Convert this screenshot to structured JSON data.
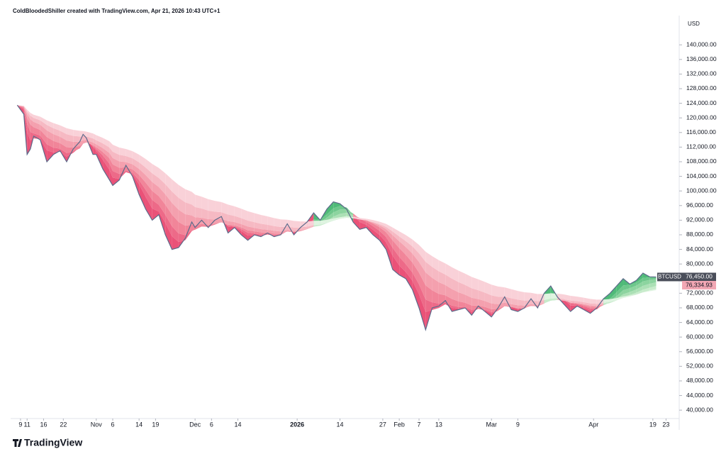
{
  "chart_data": {
    "type": "line",
    "title": "ColdBloodedShiller created with TradingView.com, Apr 21, 2026 10:43 UTC+1",
    "brand": "TradingView",
    "currency": "USD",
    "x": [
      7,
      9,
      10,
      11,
      12,
      14,
      16,
      18,
      20,
      22,
      24,
      26,
      27,
      28,
      30,
      31,
      33,
      35,
      36,
      38,
      40,
      42,
      44,
      46,
      48,
      50,
      52,
      54,
      56,
      58,
      60,
      61,
      63,
      65,
      67,
      69,
      71,
      73,
      75,
      77,
      79,
      81,
      83,
      85,
      87,
      89,
      91,
      93,
      95,
      97,
      99,
      101,
      103,
      105,
      107,
      109,
      111,
      113,
      115,
      117,
      119,
      121,
      123,
      125,
      127,
      129,
      131,
      133,
      135,
      137,
      139,
      141,
      143,
      145,
      147,
      149,
      151,
      153,
      155,
      157,
      159,
      161,
      163,
      165,
      167,
      169,
      171,
      173,
      175,
      177,
      179,
      181,
      183,
      185,
      187,
      189,
      191,
      193,
      195,
      197,
      199,
      201
    ],
    "series": [
      {
        "name": "BTCUSD",
        "color": "#5d6a8a",
        "values": [
          123500,
          121000,
          110000,
          111500,
          115000,
          114000,
          108000,
          110000,
          111000,
          108000,
          111500,
          113500,
          115500,
          114500,
          110000,
          110000,
          106000,
          103000,
          101500,
          103000,
          107000,
          104000,
          99000,
          95000,
          92000,
          93500,
          88000,
          84000,
          84500,
          87000,
          91500,
          90000,
          92000,
          90000,
          92000,
          93000,
          88500,
          90000,
          88000,
          86500,
          88000,
          87500,
          88500,
          87500,
          88000,
          91000,
          88000,
          90000,
          91500,
          94000,
          92000,
          95000,
          97000,
          96500,
          95000,
          91500,
          89500,
          90000,
          88000,
          86500,
          84000,
          78500,
          77000,
          76000,
          73000,
          68000,
          62000,
          68000,
          68500,
          70000,
          67000,
          67500,
          68000,
          66000,
          68500,
          67000,
          65500,
          68000,
          71000,
          67500,
          67000,
          68000,
          70500,
          68000,
          72000,
          74000,
          71000,
          69000,
          67000,
          68500,
          67500,
          66500,
          68000,
          70500,
          72000,
          74000,
          76000,
          74500,
          75500,
          77500,
          76500,
          76450
        ]
      }
    ],
    "last_price": {
      "value": 76450,
      "label": "76,450.00"
    },
    "ribbon_price": {
      "value": 76334.93,
      "label": "76,334.93"
    },
    "xlim": [
      5,
      208
    ],
    "ylim": [
      37700,
      148000
    ],
    "grid": false,
    "xticks": [
      {
        "value": 8,
        "label": "9"
      },
      {
        "value": 10,
        "label": "11"
      },
      {
        "value": 15,
        "label": "16"
      },
      {
        "value": 21,
        "label": "22"
      },
      {
        "value": 31,
        "label": "Nov"
      },
      {
        "value": 36,
        "label": "6"
      },
      {
        "value": 44,
        "label": "14"
      },
      {
        "value": 49,
        "label": "19"
      },
      {
        "value": 61,
        "label": "Dec"
      },
      {
        "value": 66,
        "label": "6"
      },
      {
        "value": 74,
        "label": "14"
      },
      {
        "value": 92,
        "label": "2026"
      },
      {
        "value": 105,
        "label": "14"
      },
      {
        "value": 118,
        "label": "27"
      },
      {
        "value": 123,
        "label": "Feb"
      },
      {
        "value": 129,
        "label": "7"
      },
      {
        "value": 135,
        "label": "13"
      },
      {
        "value": 151,
        "label": "Mar"
      },
      {
        "value": 159,
        "label": "9"
      },
      {
        "value": 182,
        "label": "Apr"
      },
      {
        "value": 200,
        "label": "19"
      },
      {
        "value": 204,
        "label": "23"
      }
    ],
    "yticks": [
      {
        "value": 40000,
        "label": "40,000.00"
      },
      {
        "value": 44000,
        "label": "44,000.00"
      },
      {
        "value": 48000,
        "label": "48,000.00"
      },
      {
        "value": 52000,
        "label": "52,000.00"
      },
      {
        "value": 56000,
        "label": "56,000.00"
      },
      {
        "value": 60000,
        "label": "60,000.00"
      },
      {
        "value": 64000,
        "label": "64,000.00"
      },
      {
        "value": 68000,
        "label": "68,000.00"
      },
      {
        "value": 72000,
        "label": "72,000.00"
      },
      {
        "value": 76000,
        "label": "76,000.00"
      },
      {
        "value": 80000,
        "label": "80,000.00"
      },
      {
        "value": 84000,
        "label": "84,000.00"
      },
      {
        "value": 88000,
        "label": "88,000.00"
      },
      {
        "value": 92000,
        "label": "92,000.00"
      },
      {
        "value": 96000,
        "label": "96,000.00"
      },
      {
        "value": 100000,
        "label": "100,000.00"
      },
      {
        "value": 104000,
        "label": "104,000.00"
      },
      {
        "value": 108000,
        "label": "108,000.00"
      },
      {
        "value": 112000,
        "label": "112,000.00"
      },
      {
        "value": 116000,
        "label": "116,000.00"
      },
      {
        "value": 120000,
        "label": "120,000.00"
      },
      {
        "value": 124000,
        "label": "124,000.00"
      },
      {
        "value": 128000,
        "label": "128,000.00"
      },
      {
        "value": 132000,
        "label": "132,000.00"
      },
      {
        "value": 136000,
        "label": "136,000.00"
      },
      {
        "value": 140000,
        "label": "140,000.00"
      }
    ]
  }
}
